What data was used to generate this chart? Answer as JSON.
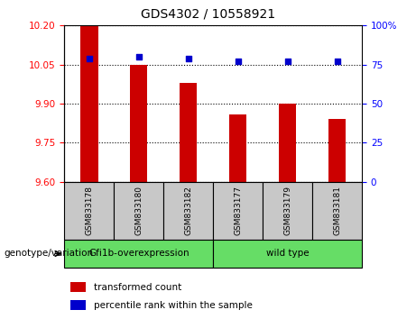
{
  "title": "GDS4302 / 10558921",
  "samples": [
    "GSM833178",
    "GSM833180",
    "GSM833182",
    "GSM833177",
    "GSM833179",
    "GSM833181"
  ],
  "bar_values": [
    10.2,
    10.05,
    9.98,
    9.86,
    9.9,
    9.84
  ],
  "percentile_values": [
    79,
    80,
    79,
    77,
    77,
    77
  ],
  "ylim": [
    9.6,
    10.2
  ],
  "ylim_right": [
    0,
    100
  ],
  "yticks_left": [
    9.6,
    9.75,
    9.9,
    10.05,
    10.2
  ],
  "yticks_right": [
    0,
    25,
    50,
    75,
    100
  ],
  "bar_color": "#cc0000",
  "dot_color": "#0000cc",
  "label_bg": "#c8c8c8",
  "group1_label": "Gfi1b-overexpression",
  "group2_label": "wild type",
  "group_color": "#66dd66",
  "group1_indices": [
    0,
    1,
    2
  ],
  "group2_indices": [
    3,
    4,
    5
  ],
  "legend_bar_label": "transformed count",
  "legend_dot_label": "percentile rank within the sample",
  "genotype_label": "genotype/variation"
}
